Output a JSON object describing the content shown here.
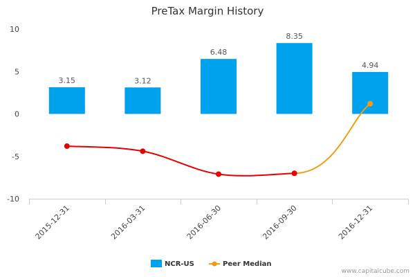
{
  "chart_data": {
    "type": "bar",
    "title": "PreTax Margin History",
    "categories": [
      "2015-12-31",
      "2016-03-31",
      "2016-06-30",
      "2016-09-30",
      "2016-12-31"
    ],
    "series": [
      {
        "name": "NCR-US",
        "type": "bar",
        "color": "#00a2ed",
        "values": [
          3.15,
          3.12,
          6.48,
          8.35,
          4.94
        ],
        "value_labels": [
          "3.15",
          "3.12",
          "6.48",
          "8.35",
          "4.94"
        ]
      },
      {
        "name": "Peer Median",
        "type": "line",
        "color": "#f39c12",
        "values": [
          null,
          null,
          null,
          null,
          1.2
        ]
      },
      {
        "name": "",
        "type": "line",
        "color": "#e60000",
        "values": [
          -3.8,
          -4.4,
          -7.1,
          -7.0,
          null
        ]
      }
    ],
    "ylim": [
      -10,
      10
    ],
    "yticks": [
      10,
      5,
      0,
      -5,
      -10
    ],
    "xlabel": "",
    "ylabel": "",
    "grid": false,
    "legend": "bottom-center"
  },
  "credit": "www.capitalcube.com"
}
